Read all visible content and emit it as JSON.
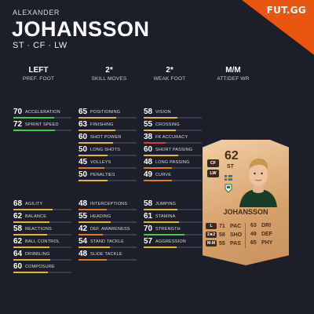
{
  "brand": {
    "logo": "FUT.GG"
  },
  "player": {
    "first_name": "ALEXANDER",
    "last_name": "JOHANSSON",
    "positions": "ST · CF · LW"
  },
  "info": [
    {
      "value": "LEFT",
      "label": "PREF. FOOT"
    },
    {
      "value": "2*",
      "label": "SKILL MOVES"
    },
    {
      "value": "2*",
      "label": "WEAK FOOT"
    },
    {
      "value": "M/M",
      "label": "ATT/DEF WR"
    }
  ],
  "colors": {
    "green": "#45c84c",
    "yellow": "#e3b828",
    "orange": "#e07a22",
    "red": "#d93c3c",
    "brand_orange": "#e8560f",
    "panel": "#1c1f2a"
  },
  "stats": {
    "group1": [
      {
        "value": "70",
        "label": "ACCELERATION"
      },
      {
        "value": "72",
        "label": "SPRINT SPEED"
      }
    ],
    "group2": [
      {
        "value": "65",
        "label": "POSITIONING"
      },
      {
        "value": "63",
        "label": "FINISHING"
      },
      {
        "value": "60",
        "label": "SHOT POWER"
      },
      {
        "value": "50",
        "label": "LONG SHOTS"
      },
      {
        "value": "45",
        "label": "VOLLEYS"
      },
      {
        "value": "50",
        "label": "PENALTIES"
      }
    ],
    "group3": [
      {
        "value": "58",
        "label": "VISION"
      },
      {
        "value": "55",
        "label": "CROSSING"
      },
      {
        "value": "38",
        "label": "FK ACCURACY"
      },
      {
        "value": "60",
        "label": "SHORT PASSING"
      },
      {
        "value": "48",
        "label": "LONG PASSING"
      },
      {
        "value": "49",
        "label": "CURVE"
      }
    ],
    "group4": [
      {
        "value": "68",
        "label": "AGILITY"
      },
      {
        "value": "62",
        "label": "BALANCE"
      },
      {
        "value": "58",
        "label": "REACTIONS"
      },
      {
        "value": "62",
        "label": "BALL CONTROL"
      },
      {
        "value": "64",
        "label": "DRIBBLING"
      },
      {
        "value": "60",
        "label": "COMPOSURE"
      }
    ],
    "group5": [
      {
        "value": "48",
        "label": "INTERCEPTIONS"
      },
      {
        "value": "55",
        "label": "HEADING"
      },
      {
        "value": "42",
        "label": "DEF. AWARENESS"
      },
      {
        "value": "54",
        "label": "STAND TACKLE"
      },
      {
        "value": "48",
        "label": "SLIDE TACKLE"
      }
    ],
    "group6": [
      {
        "value": "58",
        "label": "JUMPING"
      },
      {
        "value": "61",
        "label": "STAMINA"
      },
      {
        "value": "70",
        "label": "STRENGTH"
      },
      {
        "value": "57",
        "label": "AGGRESSION"
      }
    ]
  },
  "card": {
    "rating": "62",
    "position": "ST",
    "alt_positions": [
      "CF",
      "LW"
    ],
    "name": "JOHANSSON",
    "left_stats": [
      {
        "pill": "L",
        "value": "71",
        "label": "PAC"
      },
      {
        "pill": "2★2",
        "value": "58",
        "label": "SHO"
      },
      {
        "pill": "M-M",
        "value": "55",
        "label": "PAS"
      }
    ],
    "right_stats": [
      {
        "value": "63",
        "label": "DRI"
      },
      {
        "value": "49",
        "label": "DEF"
      },
      {
        "value": "65",
        "label": "PHY"
      }
    ]
  }
}
